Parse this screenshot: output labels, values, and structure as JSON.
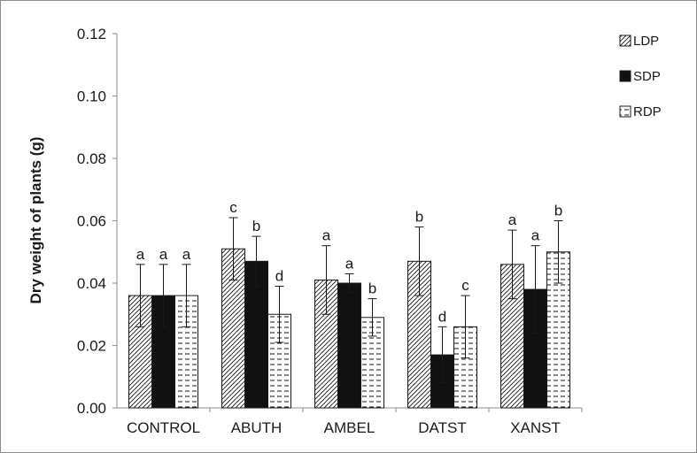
{
  "chart_data": {
    "type": "bar",
    "title": "",
    "xlabel": "",
    "ylabel": "Dry weight of plants (g)",
    "ylim": [
      0,
      0.12
    ],
    "yticks": [
      "0.00",
      "0.02",
      "0.04",
      "0.06",
      "0.08",
      "0.10",
      "0.12"
    ],
    "grid": false,
    "legend_position": "top-right",
    "categories": [
      "CONTROL",
      "ABUTH",
      "AMBEL",
      "DATST",
      "XANST"
    ],
    "series": [
      {
        "name": "LDP",
        "pattern": "diagonal-hatch",
        "values": [
          0.036,
          0.051,
          0.041,
          0.047,
          0.046
        ],
        "errors": [
          0.01,
          0.01,
          0.011,
          0.011,
          0.011
        ],
        "letters": [
          "a",
          "c",
          "a",
          "b",
          "a"
        ]
      },
      {
        "name": "SDP",
        "pattern": "solid",
        "values": [
          0.036,
          0.047,
          0.04,
          0.017,
          0.038
        ],
        "errors": [
          0.01,
          0.008,
          0.003,
          0.009,
          0.014
        ],
        "letters": [
          "a",
          "b",
          "a",
          "d",
          "a"
        ]
      },
      {
        "name": "RDP",
        "pattern": "horizontal-dash",
        "values": [
          0.036,
          0.03,
          0.029,
          0.026,
          0.05
        ],
        "errors": [
          0.01,
          0.009,
          0.006,
          0.01,
          0.01
        ],
        "letters": [
          "a",
          "d",
          "b",
          "c",
          "b"
        ]
      }
    ]
  },
  "colors": {
    "bar_stroke": "#1a1a1a",
    "axis": "#8c8c8c",
    "frame": "#8c8c8c",
    "solid_fill": "#111111"
  }
}
